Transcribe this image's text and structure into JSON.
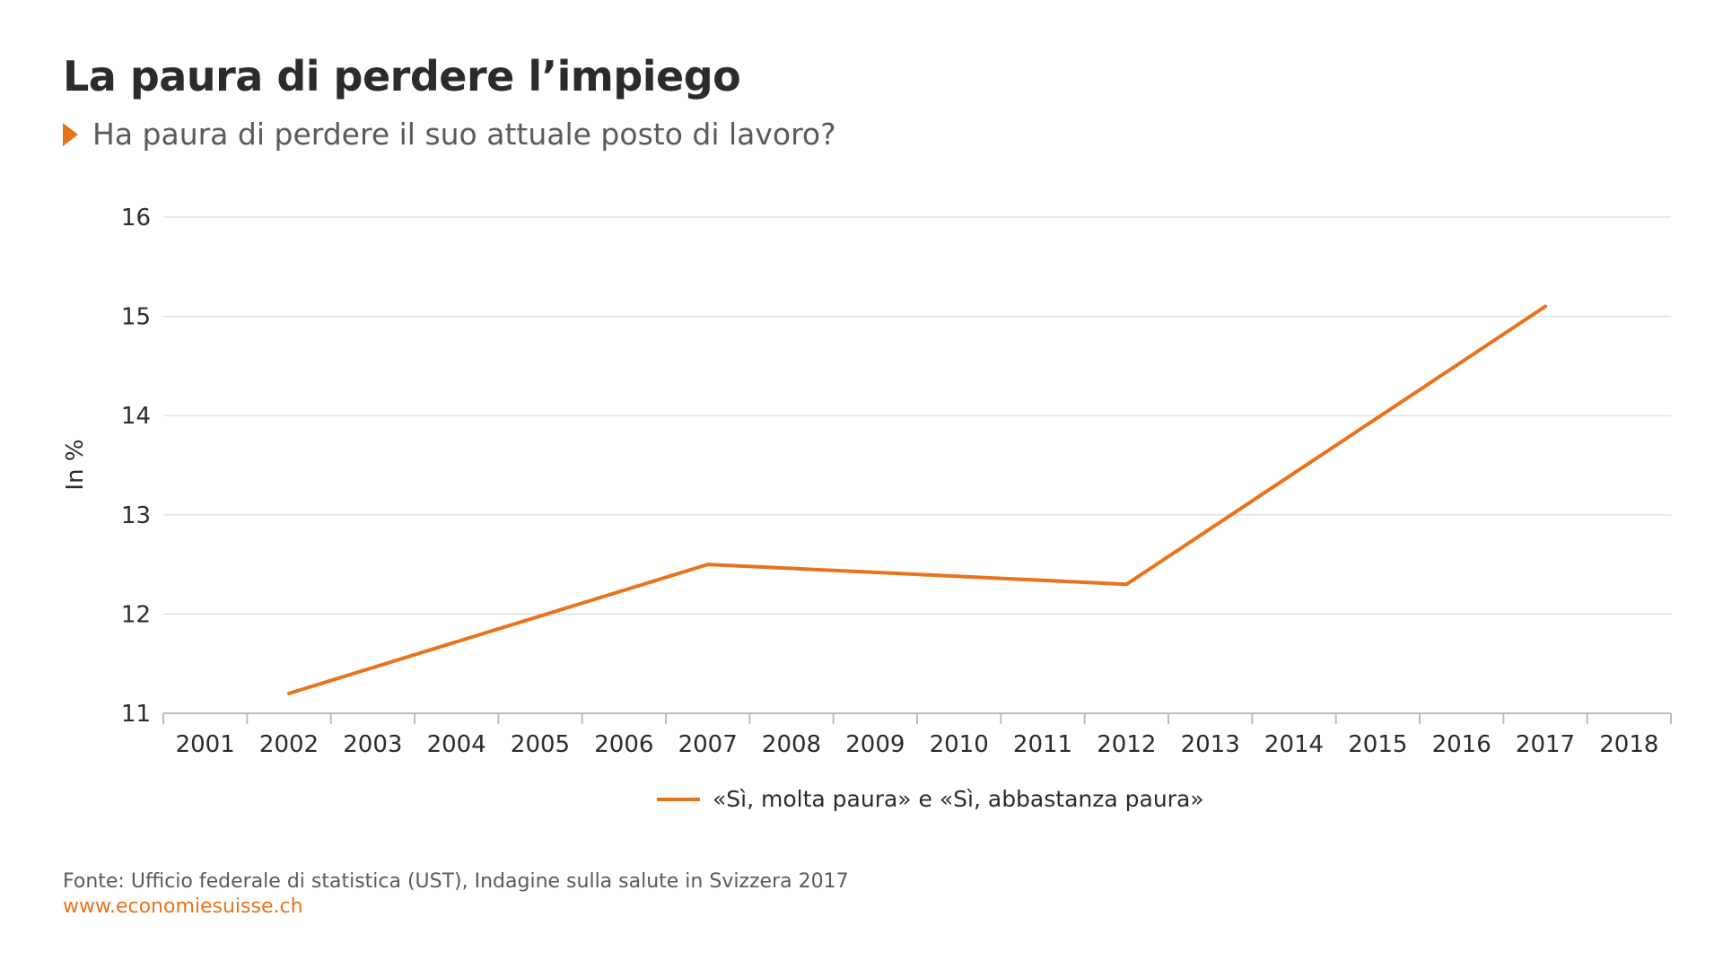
{
  "header": {
    "title": "La paura di perdere l’impiego",
    "subtitle": "Ha paura di perdere il suo attuale posto di lavoro?"
  },
  "footer": {
    "source": "Fonte: Ufficio federale di statistica (UST), Indagine sulla salute in Svizzera 2017",
    "url": "www.economiesuisse.ch"
  },
  "colors": {
    "accent": "#e8731a",
    "grid": "#dcdcdc",
    "text": "#2b2b2b",
    "muted": "#5a5a5a"
  },
  "chart_data": {
    "type": "line",
    "title": "La paura di perdere l’impiego",
    "subtitle": "Ha paura di perdere il suo attuale posto di lavoro?",
    "xlabel": "",
    "ylabel": "In %",
    "categories": [
      "2001",
      "2002",
      "2003",
      "2004",
      "2005",
      "2006",
      "2007",
      "2008",
      "2009",
      "2010",
      "2011",
      "2012",
      "2013",
      "2014",
      "2015",
      "2016",
      "2017",
      "2018"
    ],
    "yticks": [
      11,
      12,
      13,
      14,
      15,
      16
    ],
    "ylim": [
      11,
      16
    ],
    "grid": true,
    "legend_position": "bottom-center",
    "series": [
      {
        "name": "«Sì, molta paura» e «Sì, abbastanza paura»",
        "color": "#e8731a",
        "x": [
          "2002",
          "2007",
          "2012",
          "2017"
        ],
        "values": [
          11.2,
          12.5,
          12.3,
          15.1
        ]
      }
    ]
  }
}
